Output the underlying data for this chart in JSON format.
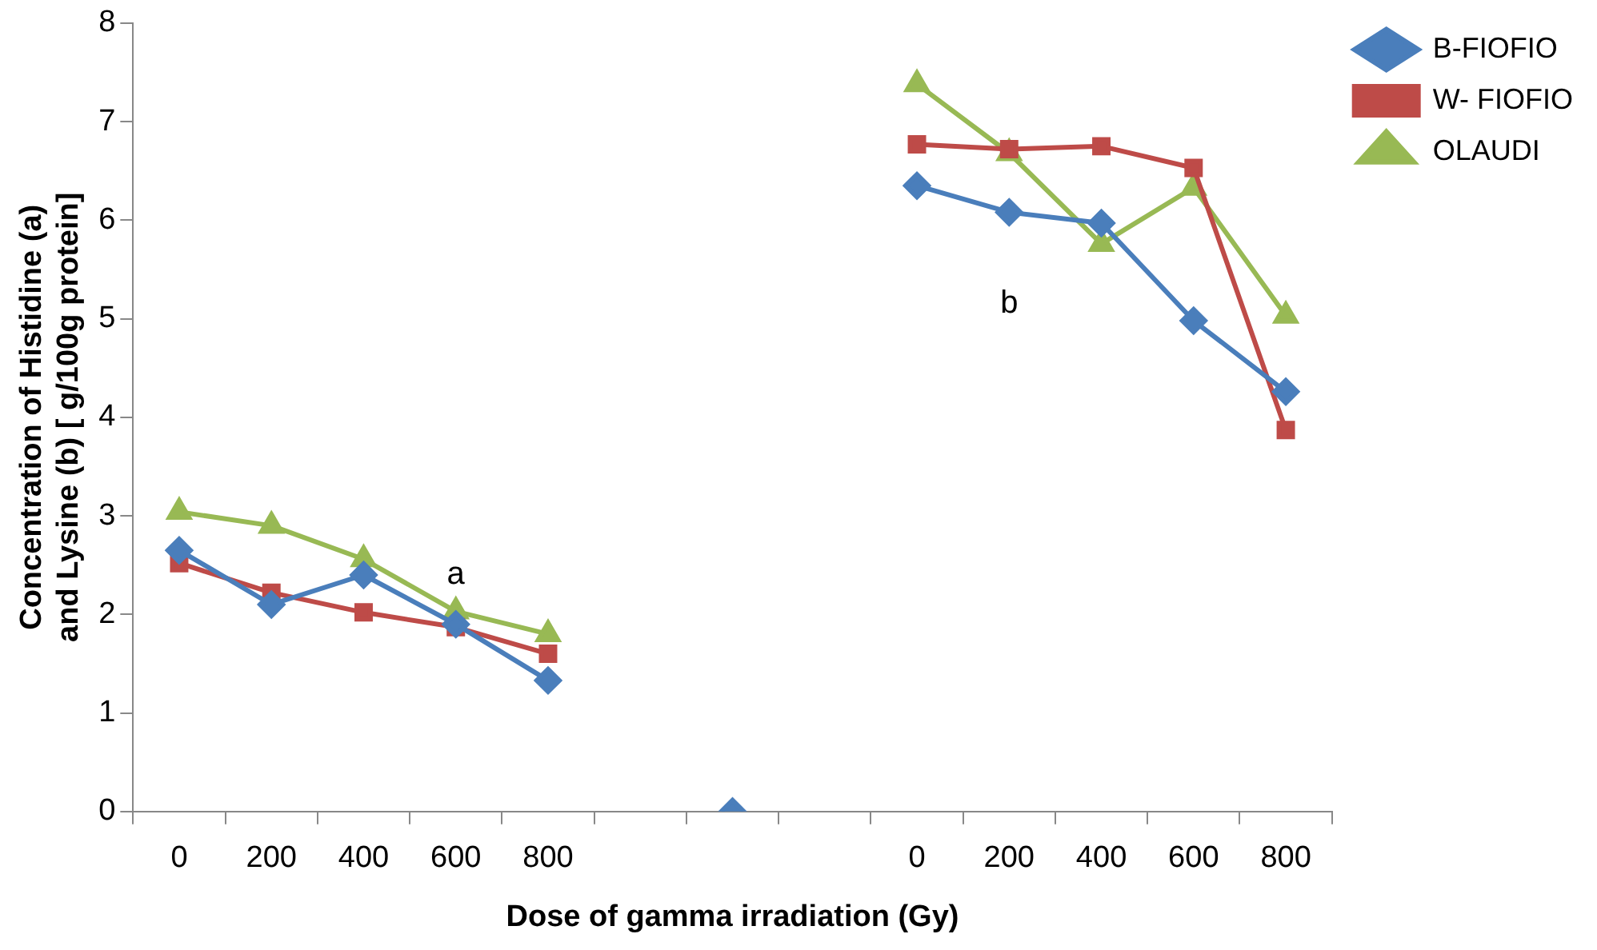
{
  "chart_data": {
    "type": "line",
    "xlabel": "Dose of gamma irradiation (Gy)",
    "ylabel": "Concentration of Histidine (a) and Lysine (b) [ g/100g protein]",
    "categories": [
      "0",
      "200",
      "400",
      "600",
      "800",
      null,
      null,
      null,
      "0",
      "200",
      "400",
      "600",
      "800"
    ],
    "ylim": [
      0,
      8
    ],
    "yticks": [
      0,
      1,
      2,
      3,
      4,
      5,
      6,
      7,
      8
    ],
    "grid": false,
    "legend": "right",
    "line_style": "solid",
    "series": [
      {
        "name": "B-FIOFIO",
        "color": "#4a7ebb",
        "marker": "diamond",
        "values": [
          2.65,
          2.1,
          2.4,
          1.9,
          1.33,
          null,
          0,
          null,
          6.35,
          6.08,
          5.97,
          4.98,
          4.26
        ]
      },
      {
        "name": "W- FIOFIO",
        "color": "#be4b48",
        "marker": "square",
        "values": [
          2.52,
          2.22,
          2.02,
          1.87,
          1.6,
          null,
          null,
          null,
          6.77,
          6.72,
          6.75,
          6.53,
          3.87
        ]
      },
      {
        "name": "OLAUDI",
        "color": "#98b954",
        "marker": "triangle",
        "values": [
          3.04,
          2.9,
          2.56,
          2.03,
          1.8,
          null,
          null,
          null,
          7.38,
          6.68,
          5.76,
          6.33,
          5.03
        ]
      }
    ],
    "annotations": [
      "a",
      "b"
    ]
  }
}
